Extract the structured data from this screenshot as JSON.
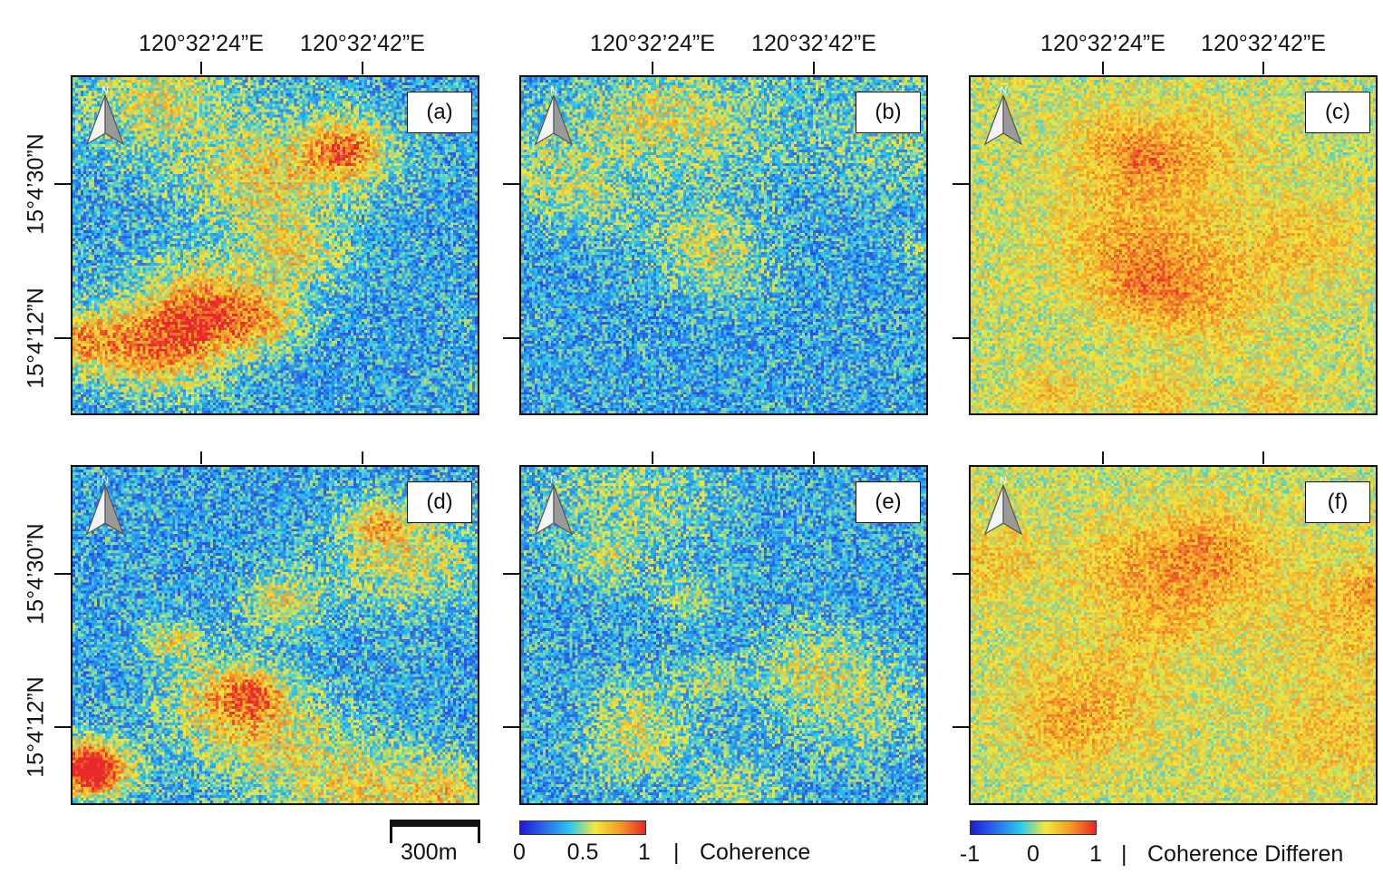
{
  "lon_labels": [
    "120°32’24”E",
    "120°32’42”E"
  ],
  "lat_labels": [
    "15°4’30”N",
    "15°4’12”N"
  ],
  "north_letter": "N",
  "panels": [
    {
      "id": "a",
      "label": "(a)",
      "kind": "coherence",
      "hot": 0.62
    },
    {
      "id": "b",
      "label": "(b)",
      "kind": "coherence",
      "hot": 0.35
    },
    {
      "id": "c",
      "label": "(c)",
      "kind": "difference",
      "hot": 0.55
    },
    {
      "id": "d",
      "label": "(d)",
      "kind": "coherence",
      "hot": 0.65
    },
    {
      "id": "e",
      "label": "(e)",
      "kind": "coherence",
      "hot": 0.4
    },
    {
      "id": "f",
      "label": "(f)",
      "kind": "difference",
      "hot": 0.5
    }
  ],
  "scale_bar": {
    "label": "300m"
  },
  "coherence_legend": {
    "min": "0",
    "mid": "0.5",
    "max": "1",
    "separator": "|",
    "title": "Coherence"
  },
  "difference_legend": {
    "min": "-1",
    "mid": "0",
    "max": "1",
    "separator": "|",
    "title": "Coherence Differen"
  },
  "colors": {
    "colormap": [
      "#1c1cd6",
      "#2a6ce8",
      "#2bc8ef",
      "#f4e83a",
      "#f29a2a",
      "#e8282a"
    ],
    "frame": "#111111"
  }
}
